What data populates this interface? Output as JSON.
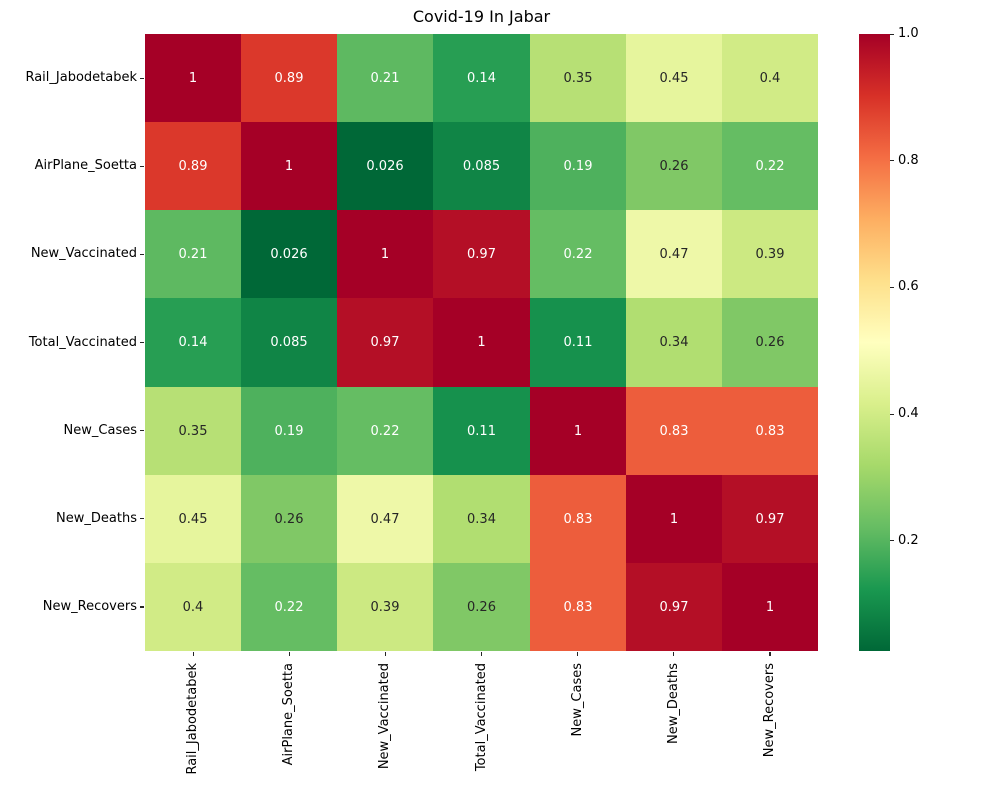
{
  "chart_data": {
    "type": "heatmap",
    "title": "Covid-19 In Jabar",
    "categories": [
      "Rail_Jabodetabek",
      "AirPlane_Soetta",
      "New_Vaccinated",
      "Total_Vaccinated",
      "New_Cases",
      "New_Deaths",
      "New_Recovers"
    ],
    "matrix": [
      [
        1,
        0.89,
        0.21,
        0.14,
        0.35,
        0.45,
        0.4
      ],
      [
        0.89,
        1,
        0.026,
        0.085,
        0.19,
        0.26,
        0.22
      ],
      [
        0.21,
        0.026,
        1,
        0.97,
        0.22,
        0.47,
        0.39
      ],
      [
        0.14,
        0.085,
        0.97,
        1,
        0.11,
        0.34,
        0.26
      ],
      [
        0.35,
        0.19,
        0.22,
        0.11,
        1,
        0.83,
        0.83
      ],
      [
        0.45,
        0.26,
        0.47,
        0.34,
        0.83,
        1,
        0.97
      ],
      [
        0.4,
        0.22,
        0.39,
        0.26,
        0.83,
        0.97,
        1
      ]
    ],
    "cell_text": [
      [
        "1",
        "0.89",
        "0.21",
        "0.14",
        "0.35",
        "0.45",
        "0.4"
      ],
      [
        "0.89",
        "1",
        "0.026",
        "0.085",
        "0.19",
        "0.26",
        "0.22"
      ],
      [
        "0.21",
        "0.026",
        "1",
        "0.97",
        "0.22",
        "0.47",
        "0.39"
      ],
      [
        "0.14",
        "0.085",
        "0.97",
        "1",
        "0.11",
        "0.34",
        "0.26"
      ],
      [
        "0.35",
        "0.19",
        "0.22",
        "0.11",
        "1",
        "0.83",
        "0.83"
      ],
      [
        "0.45",
        "0.26",
        "0.47",
        "0.34",
        "0.83",
        "1",
        "0.97"
      ],
      [
        "0.4",
        "0.22",
        "0.39",
        "0.26",
        "0.83",
        "0.97",
        "1"
      ]
    ],
    "vmin": 0.026,
    "vmax": 1.0,
    "colormap_name": "RdYlGn_r",
    "colormap_anchors_low_to_high": [
      "#006837",
      "#1a9850",
      "#66bd63",
      "#a6d96a",
      "#d9ef8b",
      "#ffffbf",
      "#fee08b",
      "#fdae61",
      "#f46d43",
      "#d73027",
      "#a50026"
    ],
    "colorbar_tick_values": [
      1.0,
      0.8,
      0.6,
      0.4,
      0.2
    ],
    "colorbar_tick_labels": [
      "1.0",
      "0.8",
      "0.6",
      "0.4",
      "0.2"
    ],
    "annotation_colors": {
      "dark": "#262626",
      "light": "#ffffff"
    },
    "axis_label_color": "#000000",
    "background_color": "#ffffff",
    "legend_position": "right-colorbar",
    "grid": false,
    "xlabel": "",
    "ylabel": ""
  }
}
